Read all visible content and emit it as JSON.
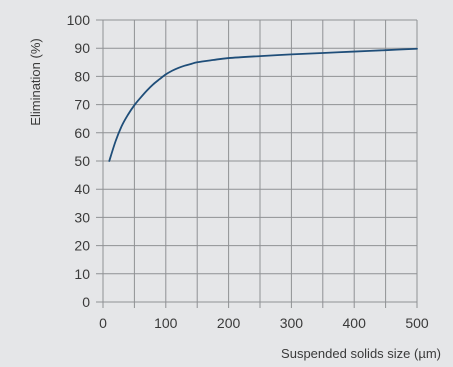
{
  "chart_data": {
    "type": "line",
    "title": "",
    "xlabel": "Suspended solids size (µm)",
    "ylabel": "Elimination (%)",
    "xlim": [
      0,
      500
    ],
    "ylim": [
      0,
      100
    ],
    "x_ticks": [
      0,
      100,
      200,
      300,
      400,
      500
    ],
    "x_tick_labels": [
      "0",
      "100",
      "200",
      "300",
      "400",
      "500"
    ],
    "x_minor_gridlines": [
      50,
      150,
      250,
      350,
      450
    ],
    "y_ticks": [
      0,
      10,
      20,
      30,
      40,
      50,
      60,
      70,
      80,
      90,
      100
    ],
    "y_tick_labels": [
      "0",
      "10",
      "20",
      "30",
      "40",
      "50",
      "60",
      "70",
      "80",
      "90",
      "100"
    ],
    "grid": true,
    "colors": {
      "background": "#e5e6e8",
      "grid": "#8f9194",
      "line": "#1f4e79",
      "text": "#3a3a3a"
    },
    "series": [
      {
        "x": [
          10,
          20,
          30,
          40,
          50,
          60,
          70,
          80,
          90,
          100,
          110,
          120,
          130,
          140,
          150,
          175,
          200,
          250,
          300,
          350,
          400,
          450,
          500
        ],
        "y": [
          50,
          57,
          62.5,
          66.5,
          69.8,
          72.5,
          75,
          77.2,
          79,
          80.7,
          82,
          83,
          83.8,
          84.4,
          85,
          85.8,
          86.5,
          87.2,
          87.8,
          88.3,
          88.8,
          89.3,
          89.8
        ]
      }
    ]
  }
}
